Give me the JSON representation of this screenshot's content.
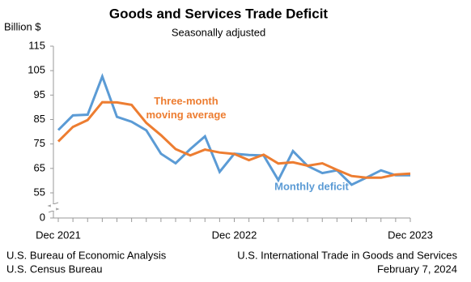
{
  "chart_data": {
    "type": "line",
    "title": "Goods and Services Trade Deficit",
    "subtitle": "Seasonally adjusted",
    "y_axis_label": "Billion $",
    "categories": [
      "Dec 2021",
      null,
      null,
      null,
      null,
      null,
      null,
      null,
      null,
      null,
      null,
      null,
      "Dec 2022",
      null,
      null,
      null,
      null,
      null,
      null,
      null,
      null,
      null,
      null,
      null,
      "Dec 2023"
    ],
    "series": [
      {
        "name": "Monthly deficit",
        "color": "#5b9bd5",
        "values": [
          80.7,
          86.7,
          87.0,
          102.6,
          86.1,
          84.1,
          80.6,
          71.0,
          67.1,
          72.9,
          78.1,
          63.6,
          71.0,
          70.5,
          70.3,
          60.2,
          72.1,
          66.0,
          63.1,
          64.2,
          58.3,
          61.2,
          64.2,
          62.2,
          62.2
        ]
      },
      {
        "name": "Three-month\nmoving average",
        "color": "#ed7d31",
        "values": [
          76.0,
          82.0,
          84.8,
          92.1,
          92.0,
          91.0,
          83.6,
          78.6,
          72.9,
          70.3,
          72.7,
          71.5,
          70.9,
          68.4,
          70.6,
          67.0,
          67.5,
          66.1,
          67.1,
          64.4,
          61.9,
          61.2,
          61.2,
          62.5,
          62.9
        ]
      }
    ],
    "ylim": [
      0,
      115
    ],
    "y_break": [
      0,
      45
    ],
    "yticks": [
      0,
      55,
      65,
      75,
      85,
      95,
      105,
      115
    ],
    "source_left": [
      "U.S. Bureau of Economic Analysis",
      "U.S. Census Bureau"
    ],
    "source_right": [
      "U.S. International Trade in Goods and Services",
      "February 7, 2024"
    ]
  }
}
